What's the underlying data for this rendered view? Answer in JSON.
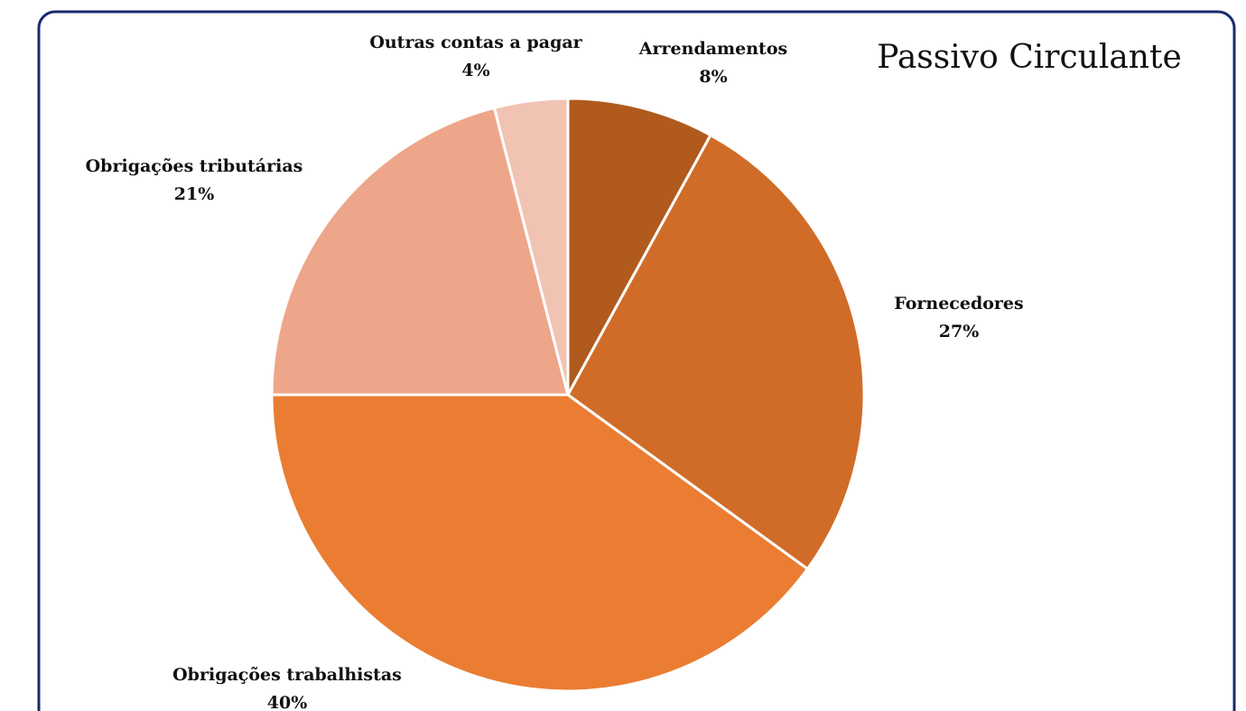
{
  "chart_data": {
    "type": "pie",
    "title": "Passivo Circulante",
    "categories": [
      "Arrendamentos",
      "Fornecedores",
      "Obrigações trabalhistas",
      "Obrigações tributárias",
      "Outras contas a pagar"
    ],
    "values": [
      8,
      27,
      40,
      21,
      4
    ],
    "value_labels": [
      "8%",
      "27%",
      "40%",
      "21%",
      "4%"
    ],
    "colors": [
      "#b05a1e",
      "#d06c28",
      "#ea7d32",
      "#eea68a",
      "#f1c3b3"
    ]
  }
}
